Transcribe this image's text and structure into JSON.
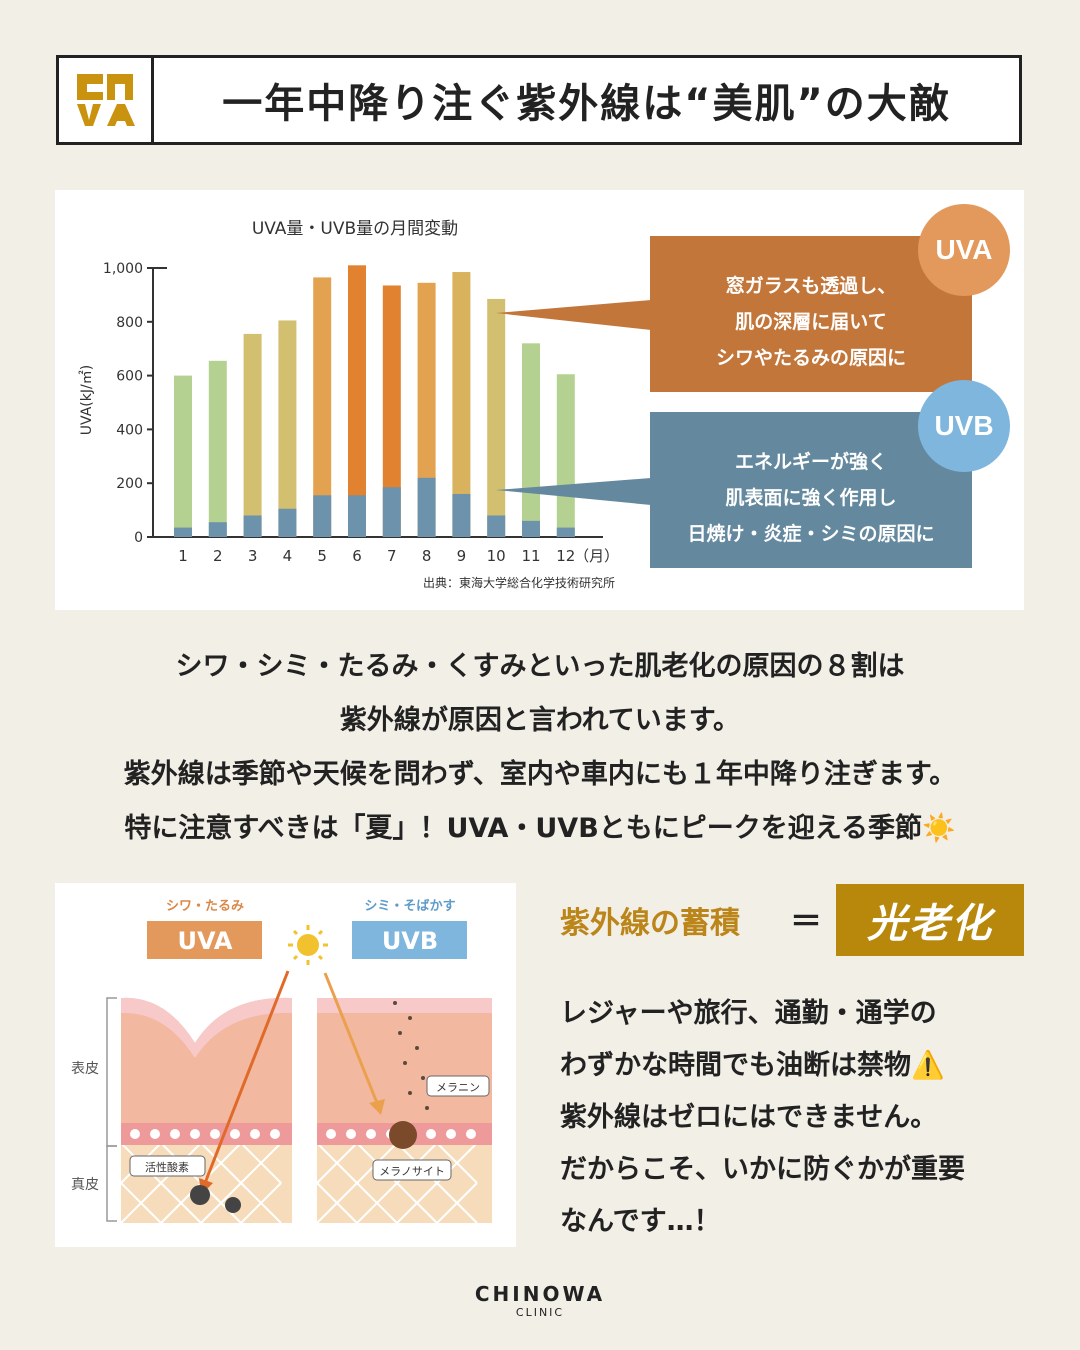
{
  "header": {
    "title": "一年中降り注ぐ紫外線は“美肌”の大敵"
  },
  "chart_data": {
    "type": "bar",
    "title": "UVA量・UVB量の月間変動",
    "ylabel": "UVA(kJ/㎡)",
    "x_unit": "（月）",
    "ylim": [
      0,
      1000
    ],
    "yticks": [
      0,
      200,
      400,
      600,
      800,
      "1,000"
    ],
    "categories": [
      "1",
      "2",
      "3",
      "4",
      "5",
      "6",
      "7",
      "8",
      "9",
      "10",
      "11",
      "12"
    ],
    "series": [
      {
        "name": "UVA",
        "values": [
          600,
          655,
          755,
          805,
          965,
          1010,
          935,
          945,
          985,
          885,
          720,
          605
        ],
        "colors": [
          "#b5d191",
          "#b5d191",
          "#d2bf70",
          "#d2bf70",
          "#e3a250",
          "#e0822f",
          "#e0822f",
          "#e3a250",
          "#d8b25c",
          "#d2bf70",
          "#b5d191",
          "#b5d191"
        ]
      },
      {
        "name": "UVB",
        "values": [
          35,
          55,
          80,
          105,
          155,
          155,
          185,
          220,
          160,
          80,
          60,
          35
        ],
        "color": "#6d92ab"
      }
    ],
    "source": "出典：東海大学総合化学技術研究所"
  },
  "callouts": {
    "uva": {
      "badge": "UVA",
      "lines": [
        "窓ガラスも透過し、",
        "肌の深層に届いて",
        "シワやたるみの原因に"
      ]
    },
    "uvb": {
      "badge": "UVB",
      "lines": [
        "エネルギーが強く",
        "肌表面に強く作用し",
        "日焼け・炎症・シミの原因に"
      ]
    }
  },
  "body": {
    "lines": [
      "シワ・シミ・たるみ・くすみといった肌老化の原因の８割は",
      "紫外線が原因と言われています。",
      "紫外線は季節や天候を問わず、室内や車内にも１年中降り注ぎます。",
      "特に注意すべきは「夏」！UVA・UVBともにピークを迎える季節☀️"
    ]
  },
  "illustration": {
    "uva_caption": "シワ・たるみ",
    "uva_label": "UVA",
    "uvb_caption": "シミ・そばかす",
    "uvb_label": "UVB",
    "epidermis": "表皮",
    "dermis": "真皮",
    "active_oxygen": "活性酸素",
    "melanin": "メラニン",
    "melanocyte": "メラノサイト"
  },
  "highlight": {
    "label": "紫外線の蓄積",
    "eq": "＝",
    "value": "光老化"
  },
  "side": {
    "lines": [
      "レジャーや旅行、通勤・通学の",
      "わずかな時間でも油断は禁物⚠️",
      "紫外線はゼロにはできません。",
      "だからこそ、いかに防ぐかが重要",
      "なんです…！"
    ]
  },
  "footer": {
    "brand": "CHINOWA",
    "sub": "CLINIC"
  }
}
